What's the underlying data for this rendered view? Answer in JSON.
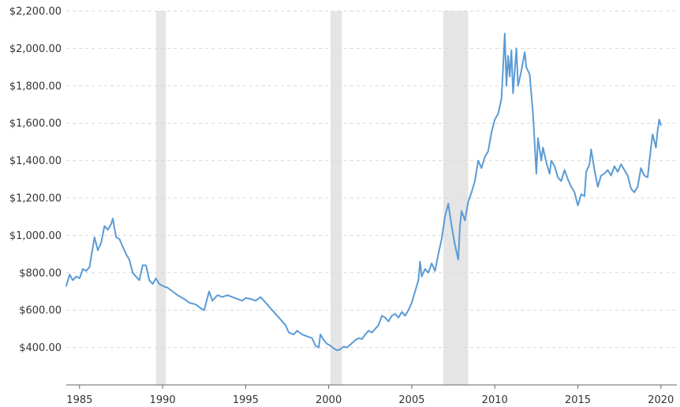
{
  "chart_data": {
    "type": "line",
    "title": "",
    "xlabel": "",
    "ylabel": "",
    "xlim": [
      1984.2,
      2020.2
    ],
    "ylim": [
      200,
      2200
    ],
    "grid": "horizontal dashed",
    "colors": {
      "line": "#5B9BD5",
      "recession": "#e5e5e5"
    },
    "y_ticks": [
      {
        "value": 400,
        "label": "$400.00"
      },
      {
        "value": 600,
        "label": "$600.00"
      },
      {
        "value": 800,
        "label": "$800.00"
      },
      {
        "value": 1000,
        "label": "$1,000.00"
      },
      {
        "value": 1200,
        "label": "$1,200.00"
      },
      {
        "value": 1400,
        "label": "$1,400.00"
      },
      {
        "value": 1600,
        "label": "$1,600.00"
      },
      {
        "value": 1800,
        "label": "$1,800.00"
      },
      {
        "value": 2000,
        "label": "$2,000.00"
      },
      {
        "value": 2200,
        "label": "$2,200.00"
      }
    ],
    "x_ticks": [
      {
        "value": 1985,
        "label": "1985"
      },
      {
        "value": 1990,
        "label": "1990"
      },
      {
        "value": 1995,
        "label": "1995"
      },
      {
        "value": 2000,
        "label": "2000"
      },
      {
        "value": 2005,
        "label": "2005"
      },
      {
        "value": 2010,
        "label": "2010"
      },
      {
        "value": 2015,
        "label": "2015"
      },
      {
        "value": 2020,
        "label": "2020"
      }
    ],
    "recessions": [
      {
        "start": 1989.6,
        "end": 1990.2
      },
      {
        "start": 2000.1,
        "end": 2000.8
      },
      {
        "start": 2006.9,
        "end": 2008.4
      }
    ],
    "series": [
      {
        "values": [
          [
            1984.2,
            730
          ],
          [
            1984.4,
            790
          ],
          [
            1984.6,
            760
          ],
          [
            1984.8,
            780
          ],
          [
            1985.0,
            770
          ],
          [
            1985.2,
            820
          ],
          [
            1985.4,
            810
          ],
          [
            1985.6,
            830
          ],
          [
            1985.9,
            990
          ],
          [
            1986.1,
            920
          ],
          [
            1986.3,
            960
          ],
          [
            1986.5,
            1050
          ],
          [
            1986.7,
            1030
          ],
          [
            1986.9,
            1060
          ],
          [
            1987.0,
            1090
          ],
          [
            1987.2,
            990
          ],
          [
            1987.4,
            980
          ],
          [
            1987.6,
            940
          ],
          [
            1987.8,
            900
          ],
          [
            1988.0,
            870
          ],
          [
            1988.2,
            800
          ],
          [
            1988.4,
            780
          ],
          [
            1988.6,
            760
          ],
          [
            1988.8,
            840
          ],
          [
            1989.0,
            840
          ],
          [
            1989.2,
            760
          ],
          [
            1989.4,
            740
          ],
          [
            1989.6,
            770
          ],
          [
            1989.8,
            740
          ],
          [
            1990.0,
            730
          ],
          [
            1990.3,
            720
          ],
          [
            1990.6,
            700
          ],
          [
            1990.9,
            680
          ],
          [
            1991.3,
            660
          ],
          [
            1991.6,
            640
          ],
          [
            1992.0,
            630
          ],
          [
            1992.3,
            610
          ],
          [
            1992.5,
            600
          ],
          [
            1992.8,
            700
          ],
          [
            1993.0,
            650
          ],
          [
            1993.3,
            680
          ],
          [
            1993.6,
            670
          ],
          [
            1993.9,
            680
          ],
          [
            1994.2,
            670
          ],
          [
            1994.5,
            660
          ],
          [
            1994.8,
            650
          ],
          [
            1995.0,
            665
          ],
          [
            1995.3,
            660
          ],
          [
            1995.6,
            650
          ],
          [
            1995.9,
            670
          ],
          [
            1996.2,
            640
          ],
          [
            1996.5,
            610
          ],
          [
            1996.8,
            580
          ],
          [
            1997.1,
            550
          ],
          [
            1997.4,
            520
          ],
          [
            1997.6,
            480
          ],
          [
            1997.9,
            470
          ],
          [
            1998.1,
            490
          ],
          [
            1998.4,
            470
          ],
          [
            1998.7,
            460
          ],
          [
            1999.0,
            450
          ],
          [
            1999.2,
            410
          ],
          [
            1999.4,
            400
          ],
          [
            1999.5,
            470
          ],
          [
            1999.7,
            440
          ],
          [
            1999.9,
            420
          ],
          [
            2000.1,
            410
          ],
          [
            2000.3,
            395
          ],
          [
            2000.5,
            385
          ],
          [
            2000.7,
            390
          ],
          [
            2000.9,
            405
          ],
          [
            2001.1,
            400
          ],
          [
            2001.3,
            415
          ],
          [
            2001.6,
            440
          ],
          [
            2001.8,
            450
          ],
          [
            2002.0,
            445
          ],
          [
            2002.2,
            470
          ],
          [
            2002.4,
            490
          ],
          [
            2002.6,
            480
          ],
          [
            2002.8,
            500
          ],
          [
            2003.0,
            520
          ],
          [
            2003.2,
            570
          ],
          [
            2003.4,
            560
          ],
          [
            2003.6,
            540
          ],
          [
            2003.8,
            570
          ],
          [
            2004.0,
            580
          ],
          [
            2004.2,
            560
          ],
          [
            2004.4,
            590
          ],
          [
            2004.6,
            570
          ],
          [
            2004.8,
            600
          ],
          [
            2005.0,
            640
          ],
          [
            2005.2,
            700
          ],
          [
            2005.4,
            760
          ],
          [
            2005.5,
            860
          ],
          [
            2005.6,
            780
          ],
          [
            2005.8,
            820
          ],
          [
            2006.0,
            800
          ],
          [
            2006.2,
            850
          ],
          [
            2006.4,
            810
          ],
          [
            2006.6,
            900
          ],
          [
            2006.8,
            980
          ],
          [
            2007.0,
            1100
          ],
          [
            2007.2,
            1170
          ],
          [
            2007.4,
            1050
          ],
          [
            2007.6,
            950
          ],
          [
            2007.8,
            870
          ],
          [
            2007.9,
            1050
          ],
          [
            2008.0,
            1130
          ],
          [
            2008.2,
            1080
          ],
          [
            2008.4,
            1180
          ],
          [
            2008.6,
            1230
          ],
          [
            2008.8,
            1290
          ],
          [
            2009.0,
            1400
          ],
          [
            2009.2,
            1360
          ],
          [
            2009.4,
            1420
          ],
          [
            2009.6,
            1450
          ],
          [
            2009.8,
            1550
          ],
          [
            2010.0,
            1620
          ],
          [
            2010.2,
            1650
          ],
          [
            2010.4,
            1730
          ],
          [
            2010.5,
            1900
          ],
          [
            2010.6,
            2080
          ],
          [
            2010.7,
            1800
          ],
          [
            2010.8,
            1960
          ],
          [
            2010.9,
            1850
          ],
          [
            2011.0,
            1990
          ],
          [
            2011.1,
            1760
          ],
          [
            2011.2,
            1880
          ],
          [
            2011.3,
            2000
          ],
          [
            2011.4,
            1800
          ],
          [
            2011.6,
            1880
          ],
          [
            2011.8,
            1980
          ],
          [
            2011.9,
            1900
          ],
          [
            2012.1,
            1860
          ],
          [
            2012.3,
            1650
          ],
          [
            2012.5,
            1330
          ],
          [
            2012.6,
            1520
          ],
          [
            2012.8,
            1400
          ],
          [
            2012.9,
            1470
          ],
          [
            2013.1,
            1390
          ],
          [
            2013.3,
            1330
          ],
          [
            2013.4,
            1400
          ],
          [
            2013.6,
            1370
          ],
          [
            2013.8,
            1310
          ],
          [
            2014.0,
            1290
          ],
          [
            2014.2,
            1350
          ],
          [
            2014.4,
            1300
          ],
          [
            2014.6,
            1260
          ],
          [
            2014.8,
            1230
          ],
          [
            2015.0,
            1160
          ],
          [
            2015.2,
            1220
          ],
          [
            2015.4,
            1210
          ],
          [
            2015.5,
            1340
          ],
          [
            2015.7,
            1380
          ],
          [
            2015.8,
            1460
          ],
          [
            2016.0,
            1350
          ],
          [
            2016.2,
            1260
          ],
          [
            2016.4,
            1320
          ],
          [
            2016.6,
            1330
          ],
          [
            2016.8,
            1350
          ],
          [
            2017.0,
            1320
          ],
          [
            2017.2,
            1370
          ],
          [
            2017.4,
            1340
          ],
          [
            2017.6,
            1380
          ],
          [
            2017.8,
            1350
          ],
          [
            2018.0,
            1320
          ],
          [
            2018.2,
            1250
          ],
          [
            2018.4,
            1230
          ],
          [
            2018.6,
            1260
          ],
          [
            2018.8,
            1360
          ],
          [
            2019.0,
            1320
          ],
          [
            2019.2,
            1310
          ],
          [
            2019.4,
            1470
          ],
          [
            2019.5,
            1540
          ],
          [
            2019.7,
            1470
          ],
          [
            2019.8,
            1560
          ],
          [
            2019.9,
            1620
          ],
          [
            2020.0,
            1590
          ]
        ]
      }
    ]
  }
}
